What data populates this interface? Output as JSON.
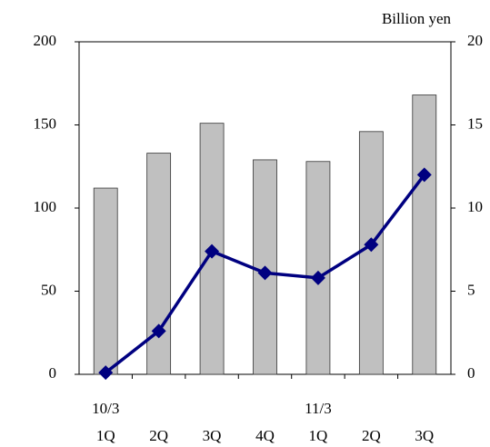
{
  "chart_data": {
    "type": "bar_line",
    "unit_label": "Billion yen",
    "categories": [
      "1Q",
      "2Q",
      "3Q",
      "4Q",
      "1Q",
      "2Q",
      "3Q"
    ],
    "category_groups": [
      "10/3",
      null,
      null,
      null,
      "11/3",
      null,
      null
    ],
    "series": [
      {
        "type": "bar",
        "color": "#c0c0c0",
        "values": [
          112,
          133,
          151,
          129,
          128,
          146,
          168
        ]
      },
      {
        "type": "line",
        "color": "#000080",
        "axis": "y2",
        "values": [
          0.1,
          2.6,
          7.4,
          6.1,
          5.8,
          7.8,
          12.0
        ]
      }
    ],
    "ylim": [
      0,
      200
    ],
    "yticks": [
      0,
      50,
      100,
      150,
      200
    ],
    "y2lim": [
      0,
      20
    ],
    "y2ticks": [
      0,
      5,
      10,
      15,
      20
    ]
  }
}
